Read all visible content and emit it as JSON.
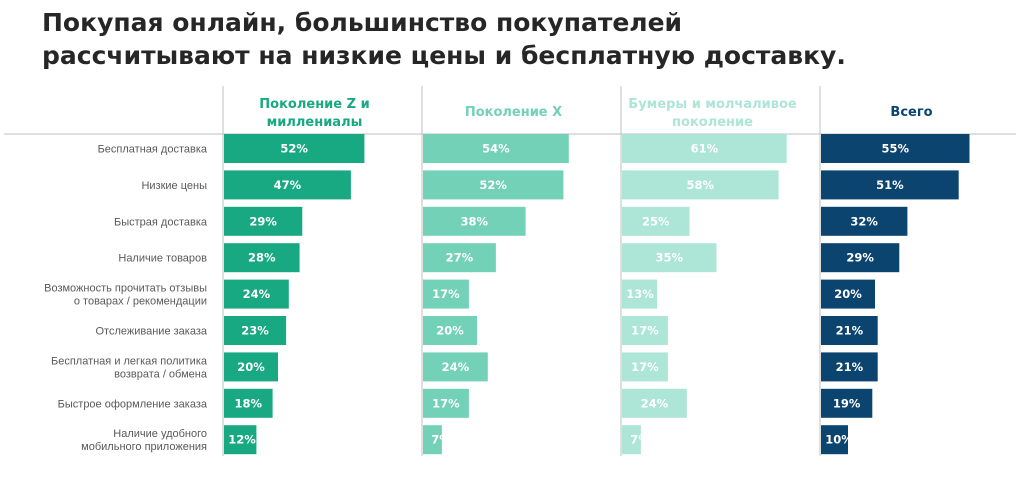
{
  "title_lines": [
    "Покупая онлайн, большинство покупателей",
    "рассчитывают на низкие цены и бесплатную доставку."
  ],
  "chart_data": {
    "type": "bar",
    "orientation": "horizontal",
    "layout": "small-multiples",
    "unit": "%",
    "categories": [
      [
        "Бесплатная доставка"
      ],
      [
        "Низкие цены"
      ],
      [
        "Быстрая доставка"
      ],
      [
        "Наличие товаров"
      ],
      [
        "Возможность прочитать отзывы",
        "о товарах / рекомендации"
      ],
      [
        "Отслеживание заказа"
      ],
      [
        "Бесплатная и легкая политика",
        "возврата / обмена"
      ],
      [
        "Быстрое оформление заказа"
      ],
      [
        "Наличие удобного",
        "мобильного приложения"
      ]
    ],
    "xlim": [
      0,
      100
    ],
    "series": [
      {
        "name_lines": [
          "Поколение Z и",
          "миллениалы"
        ],
        "color": "#19a982",
        "header_color": "#19a982",
        "label_color": "#ffffff",
        "values": [
          52,
          47,
          29,
          28,
          24,
          23,
          20,
          18,
          12
        ]
      },
      {
        "name_lines": [
          "Поколение X"
        ],
        "color": "#73d1b7",
        "header_color": "#73d1b7",
        "label_color": "#ffffff",
        "values": [
          54,
          52,
          38,
          27,
          17,
          20,
          24,
          17,
          7
        ]
      },
      {
        "name_lines": [
          "Бумеры и молчаливое",
          "поколение"
        ],
        "color": "#ade5d6",
        "header_color": "#ade5d6",
        "label_color": "#ffffff",
        "values": [
          61,
          58,
          25,
          35,
          13,
          17,
          17,
          24,
          7
        ]
      },
      {
        "name_lines": [
          "Всего"
        ],
        "color": "#0c4470",
        "header_color": "#0c4470",
        "label_color": "#ffffff",
        "values": [
          55,
          51,
          32,
          29,
          20,
          21,
          21,
          19,
          10
        ]
      }
    ]
  }
}
